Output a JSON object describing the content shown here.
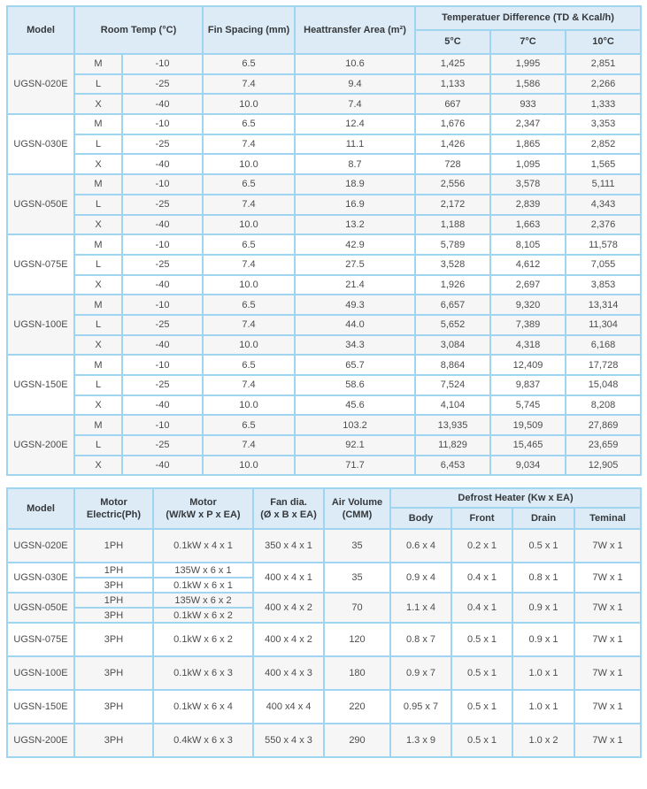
{
  "colors": {
    "border": "#a0d5f1",
    "header_bg": "#dcebf6",
    "header_text": "#35383b",
    "cell_text": "#4c4c4c",
    "row_bg": "#ffffff",
    "row_alt_bg": "#f6f6f6"
  },
  "capacity_table": {
    "headers": {
      "model": "Model",
      "room_temp": "Room Temp (°C)",
      "fin_spacing": "Fin Spacing (mm)",
      "heat_area": "Heattransfer Area (m²)",
      "td_group": "Temperatuer Difference (TD & Kcal/h)",
      "td_cols": [
        "5°C",
        "7°C",
        "10°C"
      ]
    },
    "groups": [
      {
        "model": "UGSN-020E",
        "rows": [
          {
            "grade": "M",
            "temp": "-10",
            "fin": "6.5",
            "area": "10.6",
            "td5": "1,425",
            "td7": "1,995",
            "td10": "2,851"
          },
          {
            "grade": "L",
            "temp": "-25",
            "fin": "7.4",
            "area": "9.4",
            "td5": "1,133",
            "td7": "1,586",
            "td10": "2,266"
          },
          {
            "grade": "X",
            "temp": "-40",
            "fin": "10.0",
            "area": "7.4",
            "td5": "667",
            "td7": "933",
            "td10": "1,333"
          }
        ]
      },
      {
        "model": "UGSN-030E",
        "rows": [
          {
            "grade": "M",
            "temp": "-10",
            "fin": "6.5",
            "area": "12.4",
            "td5": "1,676",
            "td7": "2,347",
            "td10": "3,353"
          },
          {
            "grade": "L",
            "temp": "-25",
            "fin": "7.4",
            "area": "11.1",
            "td5": "1,426",
            "td7": "1,865",
            "td10": "2,852"
          },
          {
            "grade": "X",
            "temp": "-40",
            "fin": "10.0",
            "area": "8.7",
            "td5": "728",
            "td7": "1,095",
            "td10": "1,565"
          }
        ]
      },
      {
        "model": "UGSN-050E",
        "rows": [
          {
            "grade": "M",
            "temp": "-10",
            "fin": "6.5",
            "area": "18.9",
            "td5": "2,556",
            "td7": "3,578",
            "td10": "5,111"
          },
          {
            "grade": "L",
            "temp": "-25",
            "fin": "7.4",
            "area": "16.9",
            "td5": "2,172",
            "td7": "2,839",
            "td10": "4,343"
          },
          {
            "grade": "X",
            "temp": "-40",
            "fin": "10.0",
            "area": "13.2",
            "td5": "1,188",
            "td7": "1,663",
            "td10": "2,376"
          }
        ]
      },
      {
        "model": "UGSN-075E",
        "rows": [
          {
            "grade": "M",
            "temp": "-10",
            "fin": "6.5",
            "area": "42.9",
            "td5": "5,789",
            "td7": "8,105",
            "td10": "11,578"
          },
          {
            "grade": "L",
            "temp": "-25",
            "fin": "7.4",
            "area": "27.5",
            "td5": "3,528",
            "td7": "4,612",
            "td10": "7,055"
          },
          {
            "grade": "X",
            "temp": "-40",
            "fin": "10.0",
            "area": "21.4",
            "td5": "1,926",
            "td7": "2,697",
            "td10": "3,853"
          }
        ]
      },
      {
        "model": "UGSN-100E",
        "rows": [
          {
            "grade": "M",
            "temp": "-10",
            "fin": "6.5",
            "area": "49.3",
            "td5": "6,657",
            "td7": "9,320",
            "td10": "13,314"
          },
          {
            "grade": "L",
            "temp": "-25",
            "fin": "7.4",
            "area": "44.0",
            "td5": "5,652",
            "td7": "7,389",
            "td10": "11,304"
          },
          {
            "grade": "X",
            "temp": "-40",
            "fin": "10.0",
            "area": "34.3",
            "td5": "3,084",
            "td7": "4,318",
            "td10": "6,168"
          }
        ]
      },
      {
        "model": "UGSN-150E",
        "rows": [
          {
            "grade": "M",
            "temp": "-10",
            "fin": "6.5",
            "area": "65.7",
            "td5": "8,864",
            "td7": "12,409",
            "td10": "17,728"
          },
          {
            "grade": "L",
            "temp": "-25",
            "fin": "7.4",
            "area": "58.6",
            "td5": "7,524",
            "td7": "9,837",
            "td10": "15,048"
          },
          {
            "grade": "X",
            "temp": "-40",
            "fin": "10.0",
            "area": "45.6",
            "td5": "4,104",
            "td7": "5,745",
            "td10": "8,208"
          }
        ]
      },
      {
        "model": "UGSN-200E",
        "rows": [
          {
            "grade": "M",
            "temp": "-10",
            "fin": "6.5",
            "area": "103.2",
            "td5": "13,935",
            "td7": "19,509",
            "td10": "27,869"
          },
          {
            "grade": "L",
            "temp": "-25",
            "fin": "7.4",
            "area": "92.1",
            "td5": "11,829",
            "td7": "15,465",
            "td10": "23,659"
          },
          {
            "grade": "X",
            "temp": "-40",
            "fin": "10.0",
            "area": "71.7",
            "td5": "6,453",
            "td7": "9,034",
            "td10": "12,905"
          }
        ]
      }
    ]
  },
  "motor_table": {
    "headers": {
      "model": "Model",
      "motor_electric": "Motor\nElectric(Ph)",
      "motor_spec": "Motor\n(W/kW x P x EA)",
      "fan_dia": "Fan dia.\n(Ø x B x EA)",
      "air_volume": "Air Volume\n(CMM)",
      "defrost_group": "Defrost Heater (Kw x EA)",
      "defrost_cols": [
        "Body",
        "Front",
        "Drain",
        "Teminal"
      ]
    },
    "groups": [
      {
        "model": "UGSN-020E",
        "motors": [
          {
            "ph": "1PH",
            "motor": "0.1kW x 4 x 1"
          }
        ],
        "fan": "350 x 4 x 1",
        "air": "35",
        "body": "0.6 x 4",
        "front": "0.2 x 1",
        "drain": "0.5 x 1",
        "terminal": "7W x 1"
      },
      {
        "model": "UGSN-030E",
        "motors": [
          {
            "ph": "1PH",
            "motor": "135W x 6 x 1"
          },
          {
            "ph": "3PH",
            "motor": "0.1kW x 6 x 1"
          }
        ],
        "fan": "400 x 4 x 1",
        "air": "35",
        "body": "0.9 x 4",
        "front": "0.4 x 1",
        "drain": "0.8 x 1",
        "terminal": "7W x 1"
      },
      {
        "model": "UGSN-050E",
        "motors": [
          {
            "ph": "1PH",
            "motor": "135W x 6 x 2"
          },
          {
            "ph": "3PH",
            "motor": "0.1kW x 6 x 2"
          }
        ],
        "fan": "400 x 4 x 2",
        "air": "70",
        "body": "1.1 x 4",
        "front": "0.4 x 1",
        "drain": "0.9 x 1",
        "terminal": "7W x 1"
      },
      {
        "model": "UGSN-075E",
        "motors": [
          {
            "ph": "3PH",
            "motor": "0.1kW x 6 x 2"
          }
        ],
        "fan": "400 x 4 x 2",
        "air": "120",
        "body": "0.8 x 7",
        "front": "0.5 x 1",
        "drain": "0.9 x 1",
        "terminal": "7W x 1"
      },
      {
        "model": "UGSN-100E",
        "motors": [
          {
            "ph": "3PH",
            "motor": "0.1kW x 6 x 3"
          }
        ],
        "fan": "400 x 4 x 3",
        "air": "180",
        "body": "0.9 x 7",
        "front": "0.5 x 1",
        "drain": "1.0 x 1",
        "terminal": "7W x 1"
      },
      {
        "model": "UGSN-150E",
        "motors": [
          {
            "ph": "3PH",
            "motor": "0.1kW x 6 x 4"
          }
        ],
        "fan": "400 x4 x 4",
        "air": "220",
        "body": "0.95 x 7",
        "front": "0.5 x 1",
        "drain": "1.0 x 1",
        "terminal": "7W x 1"
      },
      {
        "model": "UGSN-200E",
        "motors": [
          {
            "ph": "3PH",
            "motor": "0.4kW x 6 x 3"
          }
        ],
        "fan": "550 x 4 x 3",
        "air": "290",
        "body": "1.3 x 9",
        "front": "0.5 x 1",
        "drain": "1.0 x 2",
        "terminal": "7W x 1"
      }
    ]
  }
}
